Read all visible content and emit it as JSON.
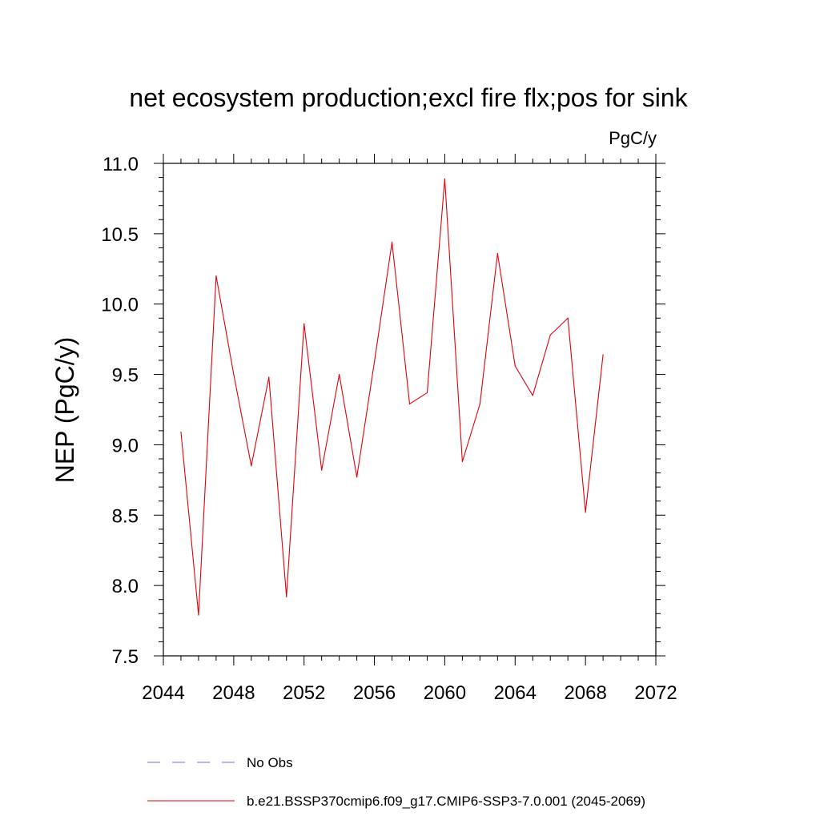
{
  "chart_data": {
    "type": "line",
    "title": "net ecosystem production;excl fire flx;pos for sink",
    "units": "PgC/y",
    "ylabel": "NEP  (PgC/y)",
    "xlabel": "",
    "xlim": [
      2044,
      2072
    ],
    "ylim": [
      7.5,
      11.0
    ],
    "xticks": [
      "2044",
      "2048",
      "2052",
      "2056",
      "2060",
      "2064",
      "2068",
      "2072"
    ],
    "yticks": [
      "7.5",
      "8.0",
      "8.5",
      "9.0",
      "9.5",
      "10.0",
      "10.5",
      "11.0"
    ],
    "grid": false,
    "legend_position": "bottom",
    "series": [
      {
        "name": "b.e21.BSSP370cmip6.f09_g17.CMIP6-SSP3-7.0.001 (2045-2069)",
        "color": "#e0000b",
        "style": "solid",
        "x": [
          2045,
          2046,
          2047,
          2048,
          2049,
          2050,
          2051,
          2052,
          2053,
          2054,
          2055,
          2056,
          2057,
          2058,
          2059,
          2060,
          2061,
          2062,
          2063,
          2064,
          2065,
          2066,
          2067,
          2068,
          2069
        ],
        "y": [
          9.09,
          7.79,
          10.2,
          9.5,
          8.85,
          9.48,
          7.92,
          9.86,
          8.82,
          9.5,
          8.77,
          9.59,
          10.44,
          9.29,
          9.37,
          10.89,
          8.88,
          9.29,
          10.36,
          9.56,
          9.35,
          9.78,
          9.9,
          8.52,
          9.64
        ]
      }
    ],
    "legend_entries": [
      {
        "label": "No Obs",
        "color": "#6e6ee0",
        "style": "dashed"
      },
      {
        "label": "b.e21.BSSP370cmip6.f09_g17.CMIP6-SSP3-7.0.001 (2045-2069)",
        "color": "#e0000b",
        "style": "solid"
      }
    ]
  }
}
